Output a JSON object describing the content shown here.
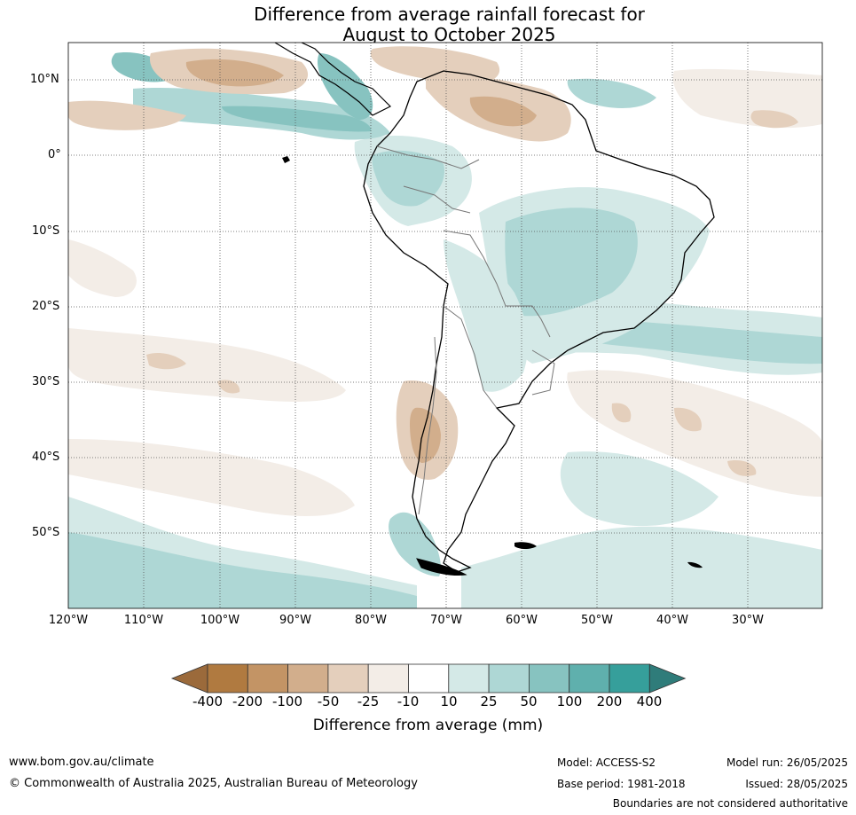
{
  "title_line1": "Difference from average rainfall forecast for",
  "title_line2": "August to October 2025",
  "lat_labels": [
    "10°N",
    "0°",
    "10°S",
    "20°S",
    "30°S",
    "40°S",
    "50°S"
  ],
  "lon_labels": [
    "120°W",
    "110°W",
    "100°W",
    "90°W",
    "80°W",
    "70°W",
    "60°W",
    "50°W",
    "40°W",
    "30°W"
  ],
  "colorbar": {
    "colors": [
      "#9b6a3b",
      "#b07a40",
      "#c39465",
      "#d2ae8c",
      "#e4cfbc",
      "#f3ede7",
      "#ffffff",
      "#d4e9e7",
      "#aed7d5",
      "#87c3c0",
      "#5fb0ad",
      "#369f9b",
      "#2f7c7a"
    ],
    "tick_labels": [
      "-400",
      "-200",
      "-100",
      "-50",
      "-25",
      "-10",
      "10",
      "25",
      "50",
      "100",
      "200",
      "400"
    ],
    "title": "Difference from average (mm)"
  },
  "footer": {
    "url": "www.bom.gov.au/climate",
    "copyright": "© Commonwealth of Australia 2025, Australian Bureau of Meteorology",
    "model": "Model: ACCESS-S2",
    "base_period": "Base period: 1981-2018",
    "model_run": "Model run: 26/05/2025",
    "issued": "Issued: 28/05/2025",
    "disclaimer": "Boundaries are not considered authoritative"
  }
}
